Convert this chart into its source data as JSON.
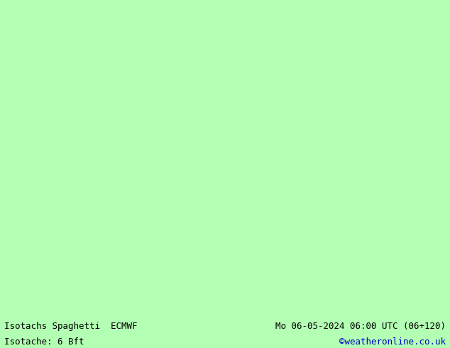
{
  "title_left": "Isotachs Spaghetti  ECMWF",
  "title_right": "Mo 06-05-2024 06:00 UTC (06+120)",
  "subtitle_left": "Isotache: 6 Bft",
  "subtitle_right": "©weatheronline.co.uk",
  "land_color": "#d3d3d3",
  "sea_color": "#aaffaa",
  "map_background": "#b3ffb3",
  "coastline_color": "#555555",
  "title_fontsize": 9,
  "subtitle_fontsize": 9,
  "copyright_color": "#0000cc",
  "figsize": [
    6.34,
    4.9
  ],
  "dpi": 100,
  "extent": [
    22,
    78,
    8,
    48
  ],
  "bottom_bar_color": "#b3ffb3",
  "bottom_bar_height": 0.09
}
